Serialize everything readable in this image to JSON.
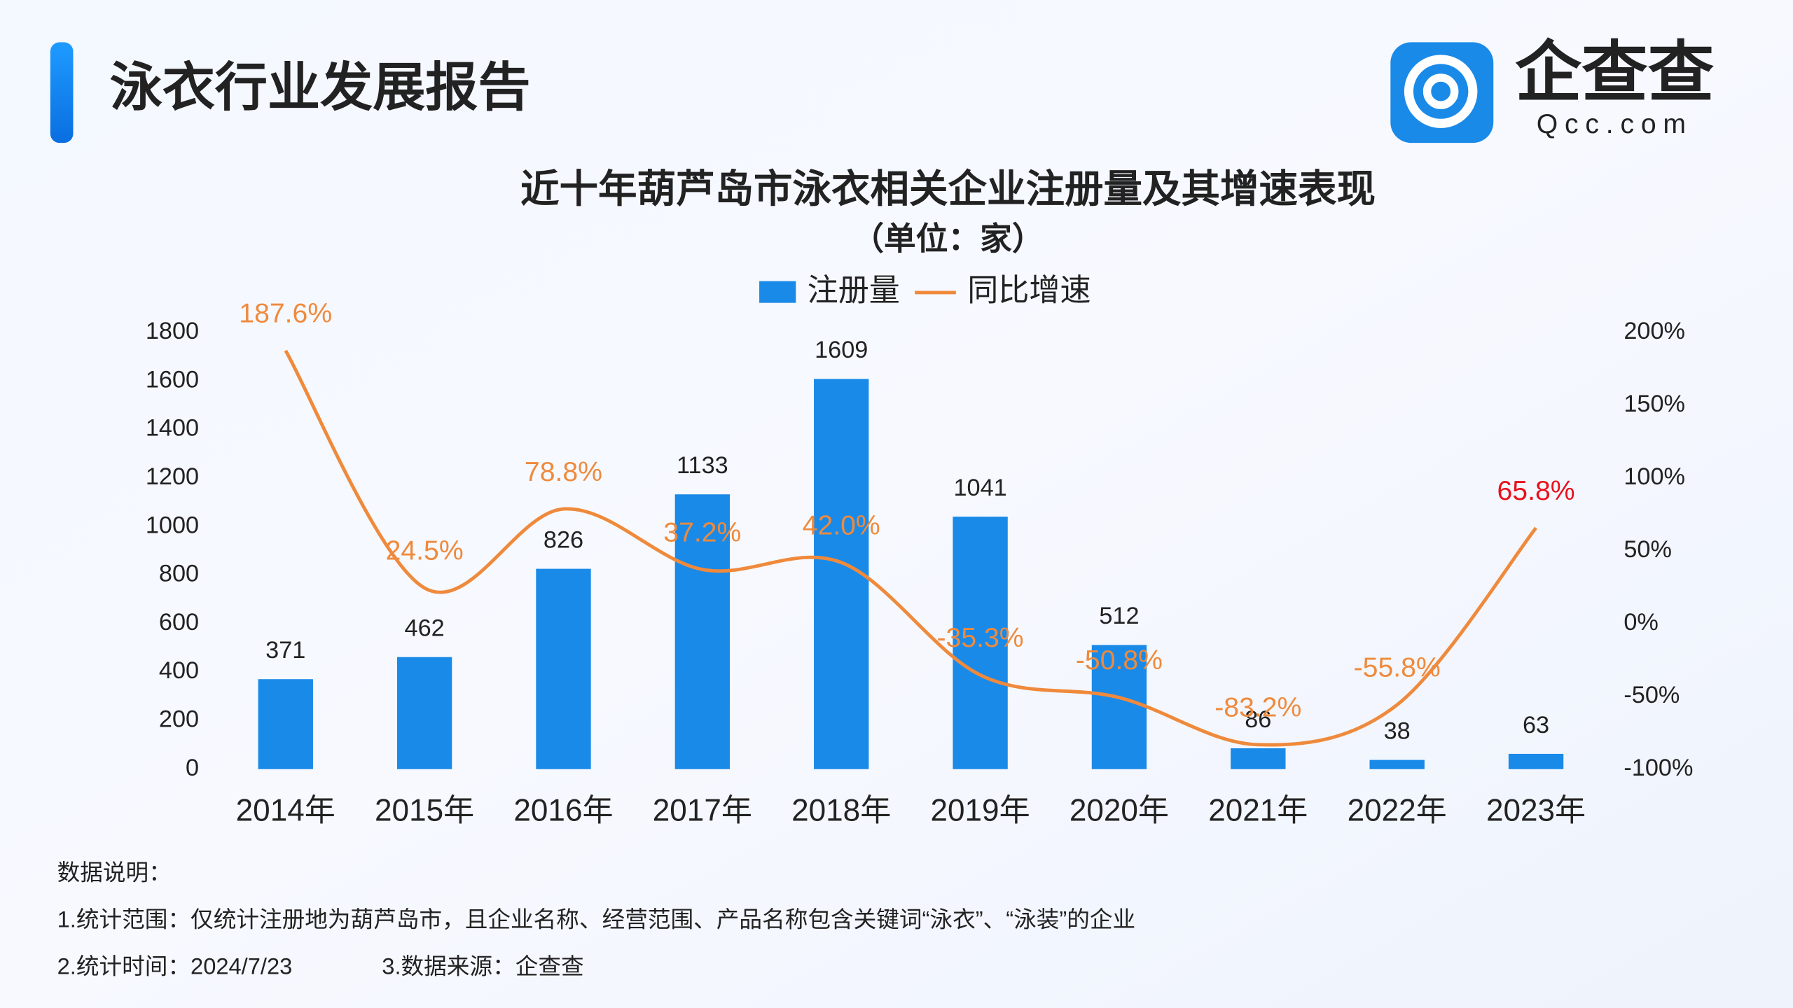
{
  "header": {
    "title": "泳衣行业发展报告",
    "logo_text": "企查查",
    "logo_subtext": "Qcc.com"
  },
  "chart_data": {
    "type": "bar",
    "title": "近十年葫芦岛市泳衣相关企业注册量及其增速表现",
    "subtitle": "（单位：家）",
    "categories": [
      "2014年",
      "2015年",
      "2016年",
      "2017年",
      "2018年",
      "2019年",
      "2020年",
      "2021年",
      "2022年",
      "2023年"
    ],
    "series": [
      {
        "name": "注册量",
        "color": "#1a8ae8",
        "values": [
          371,
          462,
          826,
          1133,
          1609,
          1041,
          512,
          86,
          38,
          63
        ]
      },
      {
        "name": "同比增速",
        "type": "line",
        "axis": "y2",
        "color": "#ef8a3c",
        "last_label_color": "#e8101c",
        "values": [
          187.6,
          24.5,
          78.8,
          37.2,
          42.0,
          -35.3,
          -50.8,
          -83.2,
          -55.8,
          65.8
        ],
        "value_labels": [
          "187.6%",
          "24.5%",
          "78.8%",
          "37.2%",
          "42.0%",
          "-35.3%",
          "-50.8%",
          "-83.2%",
          "-55.8%",
          "65.8%"
        ]
      }
    ],
    "ylim": [
      0,
      1800
    ],
    "yticks": [
      0,
      200,
      400,
      600,
      800,
      1000,
      1200,
      1400,
      1600,
      1800
    ],
    "y2lim": [
      -100,
      200
    ],
    "y2ticks": [
      {
        "value": -100,
        "label": "-100%"
      },
      {
        "value": -50,
        "label": "-50%"
      },
      {
        "value": 0,
        "label": "0%"
      },
      {
        "value": 50,
        "label": "50%"
      },
      {
        "value": 100,
        "label": "100%"
      },
      {
        "value": 150,
        "label": "150%"
      },
      {
        "value": 200,
        "label": "200%"
      }
    ],
    "grid": false
  },
  "notes": {
    "heading": "数据说明：",
    "lines": [
      "1.统计范围：仅统计注册地为葫芦岛市，且企业名称、经营范围、产品名称包含关键词“泳衣”、“泳装”的企业",
      "2.统计时间：2024/7/23",
      "3.数据来源：企查查"
    ]
  }
}
